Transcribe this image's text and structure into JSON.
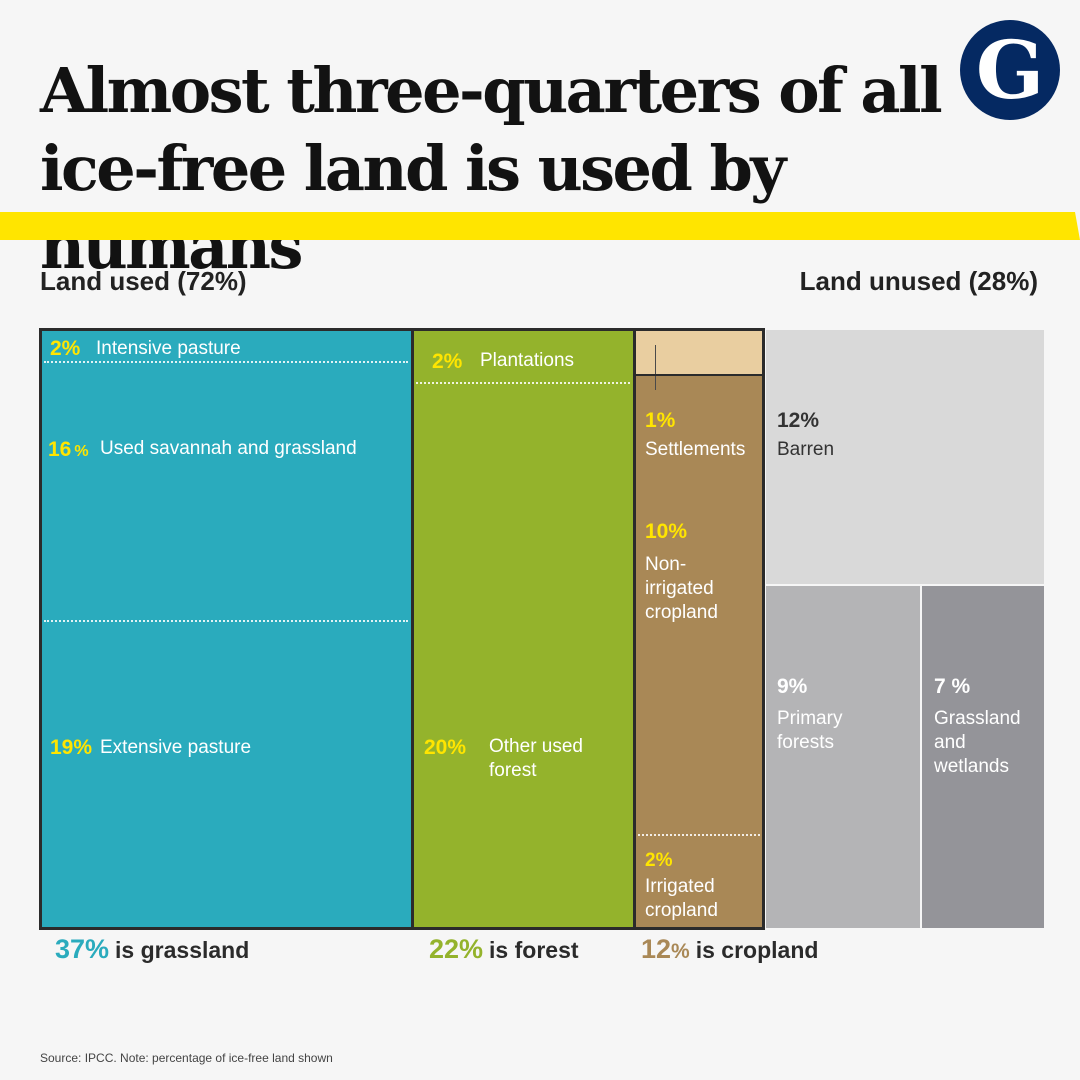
{
  "title": [
    "Almost three-quarters of all",
    "ice-free land is used by humans"
  ],
  "logo_letter": "G",
  "headings": {
    "used": "Land used (72%)",
    "unused": "Land unused (28%)"
  },
  "colors": {
    "grassland": "#2aabbd",
    "forest": "#94b32c",
    "cropland": "#a98856",
    "settlements": "#e9cea0",
    "barren": "#d9d9d9",
    "primary_forests": "#b4b4b6",
    "grassland_wetlands": "#949499",
    "highlight_yellow": "#ffe500",
    "logo_blue": "#052962"
  },
  "chart_data": {
    "type": "treemap",
    "unit": "% of ice-free land",
    "groups": [
      {
        "name": "Land used",
        "total": 72,
        "columns": [
          {
            "summary_value": "37%",
            "summary_label": "is grassland",
            "value": 37,
            "items": [
              {
                "value": 2,
                "pct": "2%",
                "label": "Intensive pasture"
              },
              {
                "value": 16,
                "pct": "16",
                "pct_suffix": "%",
                "label": "Used savannah and grassland"
              },
              {
                "value": 19,
                "pct": "19%",
                "label": "Extensive pasture"
              }
            ]
          },
          {
            "summary_value": "22%",
            "summary_label": "is forest",
            "value": 22,
            "items": [
              {
                "value": 2,
                "pct": "2%",
                "label": "Plantations"
              },
              {
                "value": 20,
                "pct": "20%",
                "label": "Other used forest"
              }
            ]
          },
          {
            "summary_value": "12",
            "summary_suffix": "%",
            "summary_label": "is cropland",
            "value": 12,
            "items": [
              {
                "value": 1,
                "pct": "1%",
                "label": "Settlements"
              },
              {
                "value": 10,
                "pct": "10%",
                "label": "Non-irrigated cropland"
              },
              {
                "value": 2,
                "pct": "2%",
                "label": "Irrigated cropland"
              }
            ]
          }
        ]
      },
      {
        "name": "Land unused",
        "total": 28,
        "items": [
          {
            "value": 12,
            "pct": "12%",
            "label": "Barren"
          },
          {
            "value": 9,
            "pct": "9%",
            "label": "Primary forests"
          },
          {
            "value": 7,
            "pct": "7 %",
            "label": "Grassland and wetlands"
          }
        ]
      }
    ]
  },
  "source": "Source: IPCC. Note: percentage of ice-free land shown"
}
